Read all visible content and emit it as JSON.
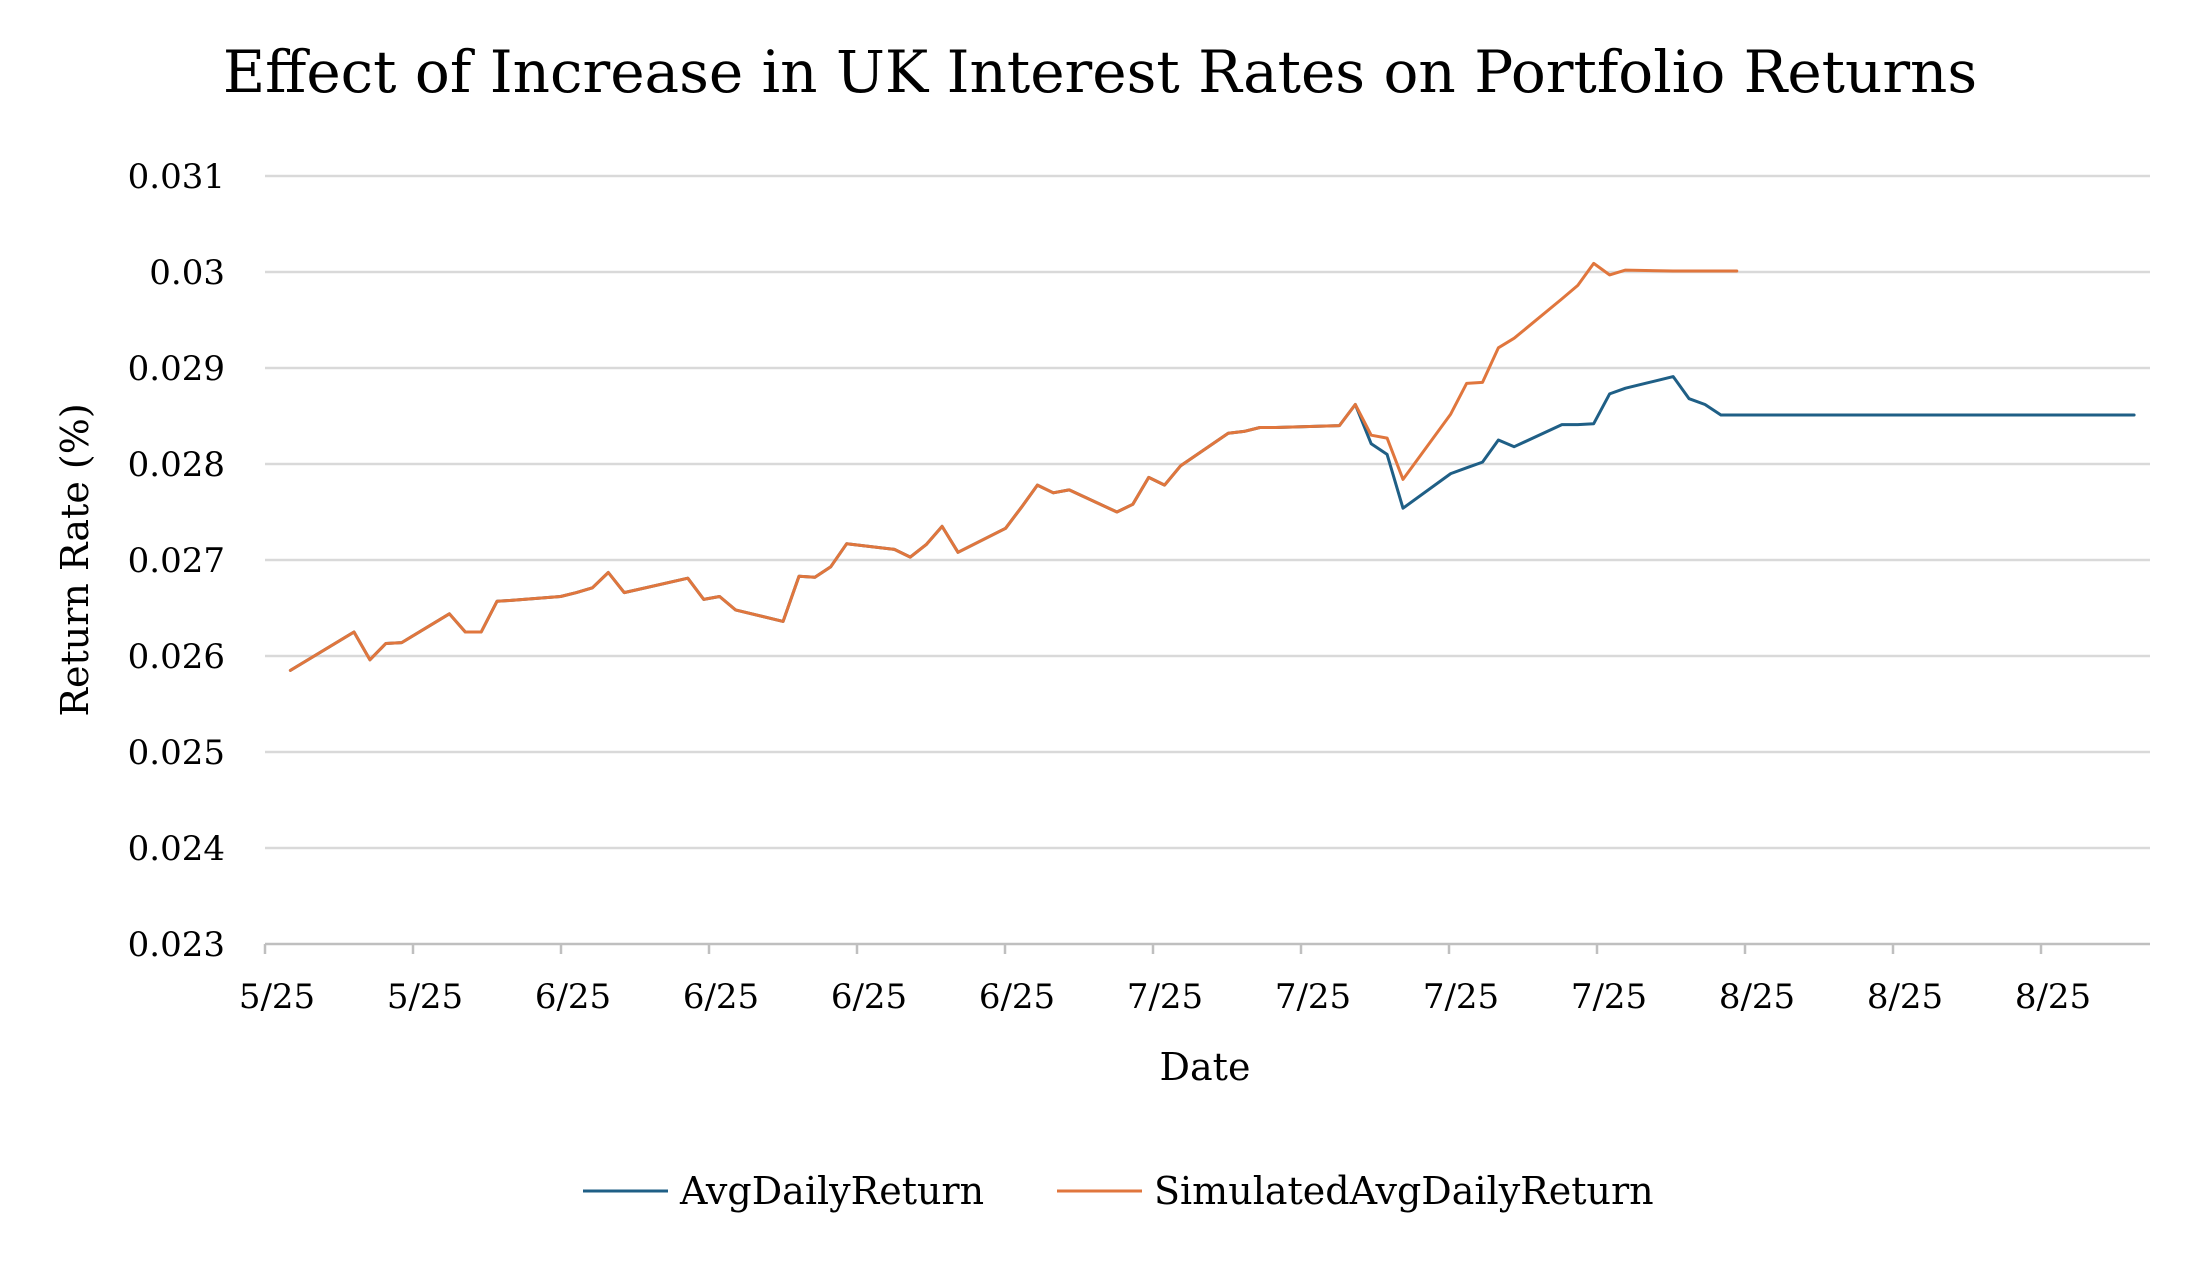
{
  "chart_data": {
    "type": "line",
    "title": "Effect of Increase in UK Interest Rates on Portfolio Returns",
    "xlabel": "Date",
    "ylabel": "Return Rate (%)",
    "ylim": [
      0.023,
      0.031
    ],
    "yticks": [
      "0.023",
      "0.024",
      "0.025",
      "0.026",
      "0.027",
      "0.028",
      "0.029",
      "0.03",
      "0.031"
    ],
    "xtick_labels": [
      "5/25",
      "5/25",
      "6/25",
      "6/25",
      "6/25",
      "6/25",
      "7/25",
      "7/25",
      "7/25",
      "7/25",
      "8/25",
      "8/25",
      "8/25"
    ],
    "grid": "horizontal",
    "legend": "bottom",
    "series": [
      {
        "name": "AvgDailyReturn",
        "color": "#1f5f86",
        "x": [
          "2025-05-02",
          "2025-05-06",
          "2025-05-07",
          "2025-05-08",
          "2025-05-09",
          "2025-05-12",
          "2025-05-13",
          "2025-05-14",
          "2025-05-15",
          "2025-05-16",
          "2025-05-19",
          "2025-05-20",
          "2025-05-21",
          "2025-05-22",
          "2025-05-23",
          "2025-05-27",
          "2025-05-28",
          "2025-05-29",
          "2025-05-30",
          "2025-06-02",
          "2025-06-03",
          "2025-06-04",
          "2025-06-05",
          "2025-06-06",
          "2025-06-09",
          "2025-06-10",
          "2025-06-11",
          "2025-06-12",
          "2025-06-13",
          "2025-06-16",
          "2025-06-17",
          "2025-06-18",
          "2025-06-19",
          "2025-06-20",
          "2025-06-23",
          "2025-06-24",
          "2025-06-25",
          "2025-06-26",
          "2025-06-27",
          "2025-06-30",
          "2025-07-01",
          "2025-07-02",
          "2025-07-03",
          "2025-07-07",
          "2025-07-08",
          "2025-07-09",
          "2025-07-10",
          "2025-07-11",
          "2025-07-14",
          "2025-07-15",
          "2025-07-16",
          "2025-07-17",
          "2025-07-18",
          "2025-07-21",
          "2025-07-22",
          "2025-07-23",
          "2025-07-24",
          "2025-07-25",
          "2025-07-28",
          "2025-07-29",
          "2025-07-30",
          "2025-07-31",
          "2025-08-01",
          "2025-08-04",
          "2025-08-05",
          "2025-08-06",
          "2025-08-07",
          "2025-08-08",
          "2025-08-11",
          "2025-08-12",
          "2025-08-13",
          "2025-08-14",
          "2025-08-15",
          "2025-08-18",
          "2025-08-19",
          "2025-08-20",
          "2025-08-21",
          "2025-08-22",
          "2025-08-25",
          "2025-08-26"
        ],
        "y": [
          0.02585,
          0.02625,
          0.02596,
          0.02613,
          0.02614,
          0.02644,
          0.02625,
          0.02625,
          0.02657,
          0.02658,
          0.02662,
          0.02666,
          0.02671,
          0.02687,
          0.02666,
          0.02681,
          0.02659,
          0.02662,
          0.02648,
          0.02636,
          0.02683,
          0.02682,
          0.02693,
          0.02717,
          0.02711,
          0.02703,
          0.02716,
          0.02735,
          0.02708,
          0.02733,
          0.02755,
          0.02778,
          0.0277,
          0.02773,
          0.0275,
          0.02758,
          0.02786,
          0.02778,
          0.02798,
          0.02832,
          0.02834,
          0.02838,
          0.02838,
          0.0284,
          0.02862,
          0.02821,
          0.0281,
          0.02754,
          0.0279,
          0.02796,
          0.02802,
          0.02825,
          0.02818,
          0.02841,
          0.02841,
          0.02842,
          0.02873,
          0.02879,
          0.02891,
          0.02868,
          0.02862,
          0.02851,
          0.02851,
          0.02851,
          0.02851,
          0.02851,
          0.02851,
          0.02851,
          0.02851,
          0.02851,
          0.02851,
          0.02851,
          0.02851,
          0.02851,
          0.02851,
          0.02851,
          0.02851,
          0.02851,
          0.02851,
          0.02851
        ]
      },
      {
        "name": "SimulatedAvgDailyReturn",
        "color": "#e0763d",
        "x": [
          "2025-05-02",
          "2025-05-06",
          "2025-05-07",
          "2025-05-08",
          "2025-05-09",
          "2025-05-12",
          "2025-05-13",
          "2025-05-14",
          "2025-05-15",
          "2025-05-16",
          "2025-05-19",
          "2025-05-20",
          "2025-05-21",
          "2025-05-22",
          "2025-05-23",
          "2025-05-27",
          "2025-05-28",
          "2025-05-29",
          "2025-05-30",
          "2025-06-02",
          "2025-06-03",
          "2025-06-04",
          "2025-06-05",
          "2025-06-06",
          "2025-06-09",
          "2025-06-10",
          "2025-06-11",
          "2025-06-12",
          "2025-06-13",
          "2025-06-16",
          "2025-06-17",
          "2025-06-18",
          "2025-06-19",
          "2025-06-20",
          "2025-06-23",
          "2025-06-24",
          "2025-06-25",
          "2025-06-26",
          "2025-06-27",
          "2025-06-30",
          "2025-07-01",
          "2025-07-02",
          "2025-07-03",
          "2025-07-07",
          "2025-07-08",
          "2025-07-09",
          "2025-07-10",
          "2025-07-11",
          "2025-07-14",
          "2025-07-15",
          "2025-07-16",
          "2025-07-17",
          "2025-07-18",
          "2025-07-21",
          "2025-07-22",
          "2025-07-23",
          "2025-07-24",
          "2025-07-25",
          "2025-07-28",
          "2025-07-29",
          "2025-07-30",
          "2025-07-31",
          "2025-08-01"
        ],
        "y": [
          0.02585,
          0.02625,
          0.02596,
          0.02613,
          0.02614,
          0.02644,
          0.02625,
          0.02625,
          0.02657,
          0.02658,
          0.02662,
          0.02666,
          0.02671,
          0.02687,
          0.02666,
          0.02681,
          0.02659,
          0.02662,
          0.02648,
          0.02636,
          0.02683,
          0.02682,
          0.02693,
          0.02717,
          0.02711,
          0.02703,
          0.02716,
          0.02735,
          0.02708,
          0.02733,
          0.02755,
          0.02778,
          0.0277,
          0.02773,
          0.0275,
          0.02758,
          0.02786,
          0.02778,
          0.02798,
          0.02832,
          0.02834,
          0.02838,
          0.02838,
          0.0284,
          0.02862,
          0.0283,
          0.02827,
          0.02784,
          0.02852,
          0.02884,
          0.02885,
          0.02921,
          0.02931,
          0.02972,
          0.02986,
          0.03009,
          0.02997,
          0.03002,
          0.03001,
          0.03001,
          0.03001,
          0.03001,
          0.03001
        ]
      }
    ]
  }
}
